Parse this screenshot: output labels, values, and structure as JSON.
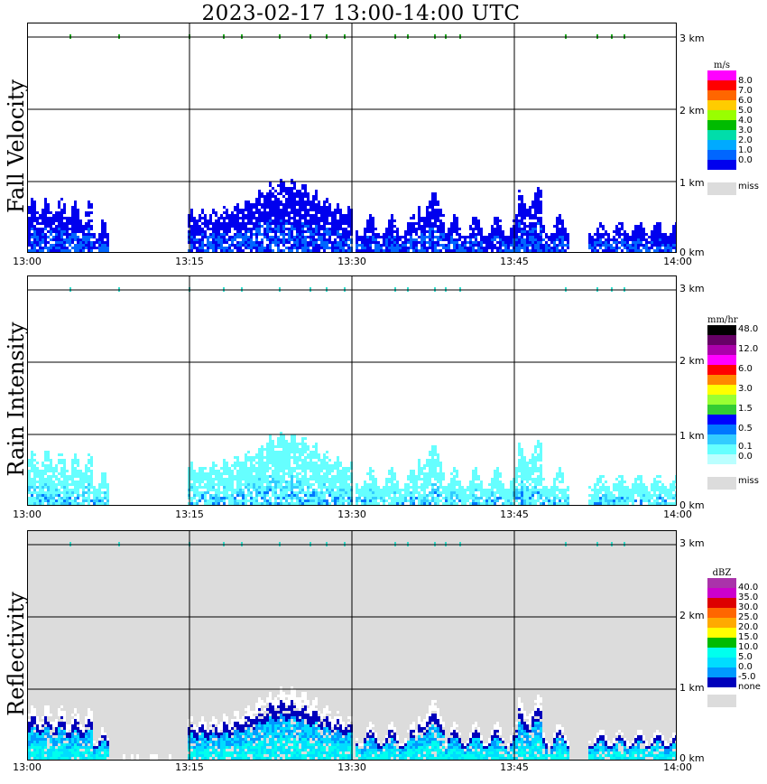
{
  "title": "2023-02-17  13:00-14:00 UTC",
  "colors": {
    "miss": "#dcdcdc",
    "grid": "#000000",
    "tick_marks": "#22aa22"
  },
  "chart_data": [
    {
      "type": "heatmap",
      "ylabel": "Fall Velocity",
      "x_ticks": [
        "13:00",
        "13:15",
        "13:30",
        "13:45",
        "14:00"
      ],
      "y_ticks": [
        "3 km",
        "2 km",
        "1 km",
        "0 km"
      ],
      "ylim_km": [
        0,
        3.1
      ],
      "legend": {
        "unit": "m/s",
        "labels": [
          "8.0",
          "7.0",
          "6.0",
          "5.0",
          "4.0",
          "3.0",
          "2.0",
          "1.0",
          "0.0"
        ],
        "colors": [
          "#ff00ff",
          "#ff0000",
          "#ff6600",
          "#ffcc00",
          "#99ff00",
          "#00bb00",
          "#00ddaa",
          "#00aaff",
          "#0066ff",
          "#0000ee"
        ],
        "miss_label": "miss"
      }
    },
    {
      "type": "heatmap",
      "ylabel": "Rain Intensity",
      "x_ticks": [
        "13:00",
        "13:15",
        "13:30",
        "13:45",
        "14:00"
      ],
      "y_ticks": [
        "3 km",
        "2 km",
        "1 km",
        "0 km"
      ],
      "ylim_km": [
        0,
        3.1
      ],
      "legend": {
        "unit": "mm/hr",
        "labels": [
          "48.0",
          "12.0",
          "6.0",
          "3.0",
          "1.5",
          "0.5",
          "0.1",
          "0.0"
        ],
        "colors": [
          "#000000",
          "#660066",
          "#aa00aa",
          "#ff00ff",
          "#ff0000",
          "#ff8800",
          "#ffff00",
          "#99ff33",
          "#33cc33",
          "#0000ff",
          "#0077ff",
          "#33ccff",
          "#66ffff",
          "#bbffff"
        ],
        "miss_label": "miss"
      }
    },
    {
      "type": "heatmap",
      "ylabel": "Reflectivity",
      "x_ticks": [
        "13:00",
        "13:15",
        "13:30",
        "13:45",
        "14:00"
      ],
      "y_ticks": [
        "3 km",
        "2 km",
        "1 km",
        "0 km"
      ],
      "ylim_km": [
        0,
        3.1
      ],
      "legend": {
        "unit": "dBZ",
        "labels": [
          "40.0",
          "35.0",
          "30.0",
          "25.0",
          "20.0",
          "15.0",
          "10.0",
          "5.0",
          "0.0",
          "-5.0",
          "none"
        ],
        "colors": [
          "#aa33aa",
          "#cc00cc",
          "#dd0000",
          "#ff6600",
          "#ffaa00",
          "#ffff00",
          "#00bb00",
          "#00ffee",
          "#00ddff",
          "#0099ff",
          "#0000bb"
        ],
        "miss_label": ""
      }
    }
  ]
}
